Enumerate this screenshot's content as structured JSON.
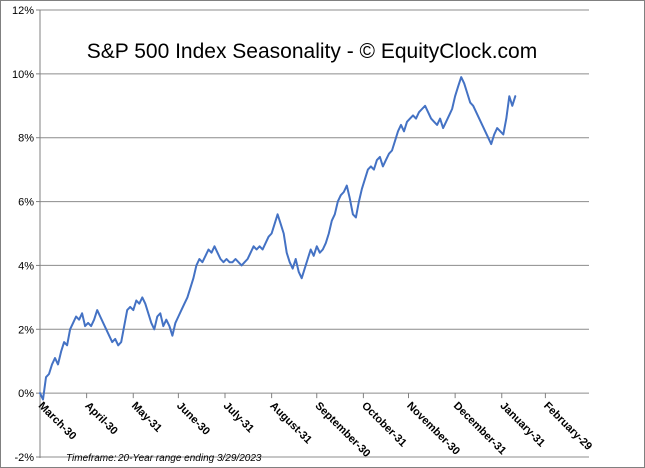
{
  "chart_data": {
    "type": "line",
    "title": "S&P 500 Index Seasonality - © EquityClock.com",
    "footer": {
      "label": "Timeframe:",
      "value": "20-Year range ending 3/29/2023"
    },
    "xlabel": "",
    "ylabel": "",
    "ylim": [
      -2,
      12
    ],
    "y_ticks": [
      -2,
      0,
      2,
      4,
      6,
      8,
      10,
      12
    ],
    "y_tick_labels": [
      "-2%",
      "0%",
      "2%",
      "4%",
      "6%",
      "8%",
      "10%",
      "12%"
    ],
    "grid": true,
    "x_tick_labels": [
      "March-30",
      "April-30",
      "May-31",
      "June-30",
      "July-31",
      "August-31",
      "September-30",
      "October-31",
      "November-30",
      "December-31",
      "January-31",
      "February-29"
    ],
    "x_tick_days": [
      0,
      31,
      62,
      92,
      123,
      154,
      184,
      215,
      245,
      276,
      307,
      336
    ],
    "x_range": [
      0,
      365
    ],
    "series": [
      {
        "name": "S&P 500 Index Seasonality",
        "color": "#4472C4",
        "points": [
          [
            0,
            0
          ],
          [
            2,
            -0.2
          ],
          [
            4,
            0.5
          ],
          [
            6,
            0.6
          ],
          [
            8,
            0.9
          ],
          [
            10,
            1.1
          ],
          [
            12,
            0.9
          ],
          [
            14,
            1.3
          ],
          [
            16,
            1.6
          ],
          [
            18,
            1.5
          ],
          [
            20,
            2.0
          ],
          [
            22,
            2.2
          ],
          [
            24,
            2.4
          ],
          [
            26,
            2.3
          ],
          [
            28,
            2.5
          ],
          [
            30,
            2.1
          ],
          [
            32,
            2.2
          ],
          [
            34,
            2.1
          ],
          [
            36,
            2.3
          ],
          [
            38,
            2.6
          ],
          [
            40,
            2.4
          ],
          [
            42,
            2.2
          ],
          [
            44,
            2.0
          ],
          [
            46,
            1.8
          ],
          [
            48,
            1.6
          ],
          [
            50,
            1.7
          ],
          [
            52,
            1.5
          ],
          [
            54,
            1.6
          ],
          [
            56,
            2.1
          ],
          [
            58,
            2.6
          ],
          [
            60,
            2.7
          ],
          [
            62,
            2.6
          ],
          [
            64,
            2.9
          ],
          [
            66,
            2.8
          ],
          [
            68,
            3.0
          ],
          [
            70,
            2.8
          ],
          [
            72,
            2.5
          ],
          [
            74,
            2.2
          ],
          [
            76,
            2.0
          ],
          [
            78,
            2.4
          ],
          [
            80,
            2.5
          ],
          [
            82,
            2.1
          ],
          [
            84,
            2.3
          ],
          [
            86,
            2.1
          ],
          [
            88,
            1.8
          ],
          [
            90,
            2.2
          ],
          [
            92,
            2.4
          ],
          [
            94,
            2.6
          ],
          [
            96,
            2.8
          ],
          [
            98,
            3.0
          ],
          [
            100,
            3.3
          ],
          [
            102,
            3.6
          ],
          [
            104,
            4.0
          ],
          [
            106,
            4.2
          ],
          [
            108,
            4.1
          ],
          [
            110,
            4.3
          ],
          [
            112,
            4.5
          ],
          [
            114,
            4.4
          ],
          [
            116,
            4.6
          ],
          [
            118,
            4.4
          ],
          [
            120,
            4.2
          ],
          [
            122,
            4.1
          ],
          [
            124,
            4.2
          ],
          [
            126,
            4.1
          ],
          [
            128,
            4.1
          ],
          [
            130,
            4.2
          ],
          [
            132,
            4.1
          ],
          [
            134,
            4.0
          ],
          [
            136,
            4.1
          ],
          [
            138,
            4.2
          ],
          [
            140,
            4.4
          ],
          [
            142,
            4.6
          ],
          [
            144,
            4.5
          ],
          [
            146,
            4.6
          ],
          [
            148,
            4.5
          ],
          [
            150,
            4.7
          ],
          [
            152,
            4.9
          ],
          [
            154,
            5.0
          ],
          [
            156,
            5.3
          ],
          [
            158,
            5.6
          ],
          [
            160,
            5.3
          ],
          [
            162,
            5.0
          ],
          [
            164,
            4.4
          ],
          [
            166,
            4.1
          ],
          [
            168,
            3.9
          ],
          [
            170,
            4.2
          ],
          [
            172,
            3.8
          ],
          [
            174,
            3.6
          ],
          [
            176,
            3.9
          ],
          [
            178,
            4.2
          ],
          [
            180,
            4.5
          ],
          [
            182,
            4.3
          ],
          [
            184,
            4.6
          ],
          [
            186,
            4.4
          ],
          [
            188,
            4.5
          ],
          [
            190,
            4.7
          ],
          [
            192,
            5.0
          ],
          [
            194,
            5.4
          ],
          [
            196,
            5.6
          ],
          [
            198,
            6.0
          ],
          [
            200,
            6.2
          ],
          [
            202,
            6.3
          ],
          [
            204,
            6.5
          ],
          [
            206,
            6.1
          ],
          [
            208,
            5.6
          ],
          [
            210,
            5.5
          ],
          [
            212,
            6.0
          ],
          [
            214,
            6.4
          ],
          [
            216,
            6.7
          ],
          [
            218,
            7.0
          ],
          [
            220,
            7.1
          ],
          [
            222,
            7.0
          ],
          [
            224,
            7.3
          ],
          [
            226,
            7.4
          ],
          [
            228,
            7.1
          ],
          [
            230,
            7.3
          ],
          [
            232,
            7.5
          ],
          [
            234,
            7.6
          ],
          [
            236,
            7.9
          ],
          [
            238,
            8.2
          ],
          [
            240,
            8.4
          ],
          [
            242,
            8.2
          ],
          [
            244,
            8.5
          ],
          [
            246,
            8.6
          ],
          [
            248,
            8.7
          ],
          [
            250,
            8.6
          ],
          [
            252,
            8.8
          ],
          [
            254,
            8.9
          ],
          [
            256,
            9.0
          ],
          [
            258,
            8.8
          ],
          [
            260,
            8.6
          ],
          [
            262,
            8.5
          ],
          [
            264,
            8.4
          ],
          [
            266,
            8.6
          ],
          [
            268,
            8.3
          ],
          [
            270,
            8.5
          ],
          [
            272,
            8.7
          ],
          [
            274,
            8.9
          ],
          [
            276,
            9.3
          ],
          [
            278,
            9.6
          ],
          [
            280,
            9.9
          ],
          [
            282,
            9.7
          ],
          [
            284,
            9.4
          ],
          [
            286,
            9.1
          ],
          [
            288,
            9.0
          ],
          [
            290,
            8.8
          ],
          [
            292,
            8.6
          ],
          [
            294,
            8.4
          ],
          [
            296,
            8.2
          ],
          [
            298,
            8.0
          ],
          [
            300,
            7.8
          ],
          [
            302,
            8.1
          ],
          [
            304,
            8.3
          ],
          [
            306,
            8.2
          ],
          [
            308,
            8.1
          ],
          [
            310,
            8.6
          ],
          [
            312,
            9.3
          ],
          [
            314,
            9.0
          ],
          [
            316,
            9.3
          ]
        ]
      }
    ]
  }
}
